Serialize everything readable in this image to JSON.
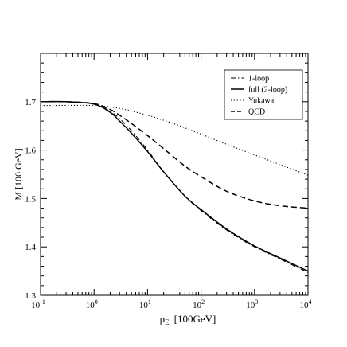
{
  "chart_data": {
    "type": "line",
    "xscale": "log",
    "xlim": [
      0.1,
      10000
    ],
    "ylim": [
      1.3,
      1.8
    ],
    "grid": false,
    "legend_position": "top-right",
    "xlabel": "p",
    "xlabel_sub": "E",
    "xlabel_unit": "[100GeV]",
    "ylabel": "M [100 GeV]",
    "x_ticks": [
      {
        "value": 0.1,
        "base": "10",
        "exp": "-1"
      },
      {
        "value": 1,
        "base": "10",
        "exp": "0"
      },
      {
        "value": 10,
        "base": "10",
        "exp": "1"
      },
      {
        "value": 100,
        "base": "10",
        "exp": "2"
      },
      {
        "value": 1000,
        "base": "10",
        "exp": "3"
      },
      {
        "value": 10000,
        "base": "10",
        "exp": "4"
      }
    ],
    "y_ticks": [
      {
        "value": 1.3,
        "label": "1.3"
      },
      {
        "value": 1.4,
        "label": "1.4"
      },
      {
        "value": 1.5,
        "label": "1.5"
      },
      {
        "value": 1.6,
        "label": "1.6"
      },
      {
        "value": 1.7,
        "label": "1.7"
      }
    ],
    "series": [
      {
        "name": "1-loop",
        "dash": "dashdot",
        "x": [
          0.1,
          0.3,
          1,
          2,
          3,
          5,
          10,
          20,
          50,
          100,
          300,
          1000,
          3000,
          10000
        ],
        "y": [
          1.7,
          1.7,
          1.695,
          1.68,
          1.665,
          1.64,
          1.6,
          1.555,
          1.505,
          1.475,
          1.435,
          1.4,
          1.375,
          1.347
        ]
      },
      {
        "name": "full (2-loop)",
        "dash": "solid",
        "x": [
          0.1,
          0.3,
          1,
          2,
          3,
          5,
          10,
          20,
          50,
          100,
          300,
          1000,
          3000,
          10000
        ],
        "y": [
          1.7,
          1.7,
          1.695,
          1.678,
          1.66,
          1.635,
          1.597,
          1.555,
          1.505,
          1.477,
          1.437,
          1.402,
          1.377,
          1.35
        ]
      },
      {
        "name": "Yukawa",
        "dash": "dotted",
        "x": [
          0.1,
          1,
          3,
          10,
          30,
          100,
          300,
          1000,
          3000,
          10000
        ],
        "y": [
          1.692,
          1.692,
          1.686,
          1.672,
          1.655,
          1.633,
          1.612,
          1.59,
          1.57,
          1.548
        ]
      },
      {
        "name": "QCD",
        "dash": "dashed",
        "x": [
          0.1,
          0.3,
          1,
          2,
          3,
          5,
          10,
          20,
          50,
          100,
          300,
          1000,
          3000,
          10000
        ],
        "y": [
          1.7,
          1.7,
          1.696,
          1.684,
          1.672,
          1.655,
          1.63,
          1.603,
          1.567,
          1.545,
          1.515,
          1.495,
          1.485,
          1.48
        ]
      }
    ]
  }
}
